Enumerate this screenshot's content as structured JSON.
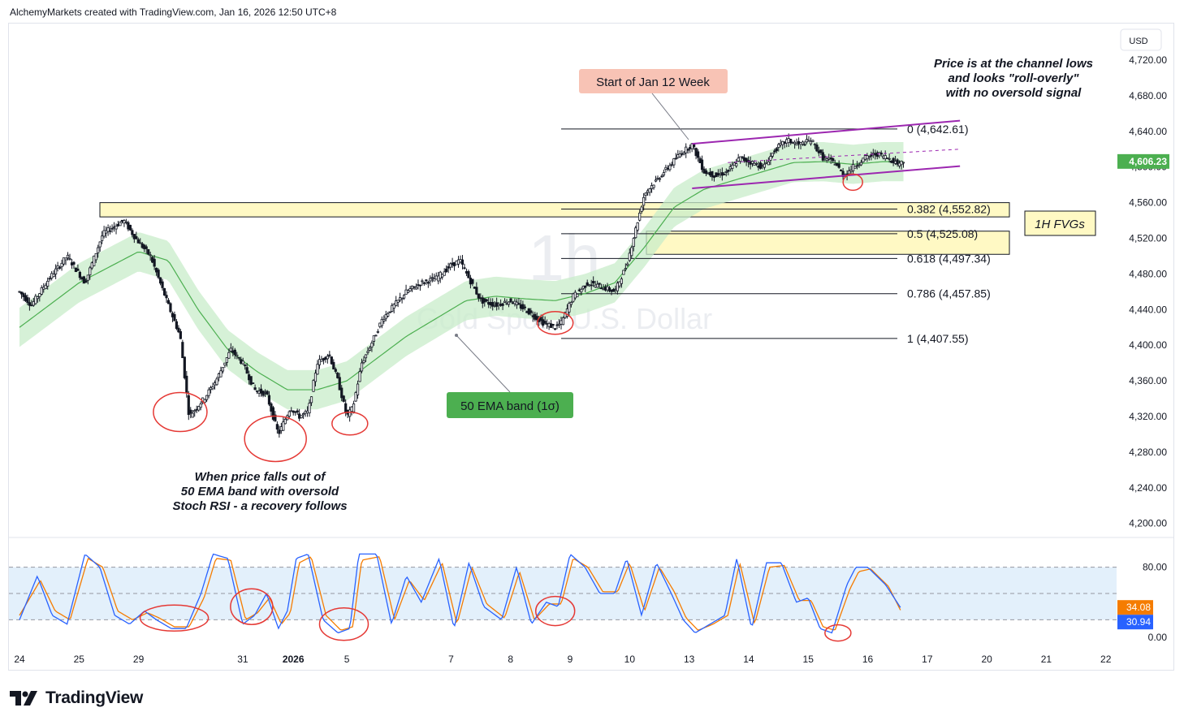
{
  "header": {
    "text": "AlchemyMarkets created with TradingView.com, Jan 16, 2026 12:50 UTC+8"
  },
  "footer": {
    "brand": "TradingView",
    "logo_icon": "tradingview-logo-icon"
  },
  "watermark": {
    "timeframe": "1h",
    "symbol_desc": "Gold Spot / U.S. Dollar"
  },
  "currency_button": "USD",
  "colors": {
    "candle": "#131722",
    "ema": "#4caf50",
    "band": "#c8ecc9",
    "channel": "#9c27b0",
    "circle": "#e53935",
    "stoch_k": "#2962ff",
    "stoch_d": "#f57c00",
    "stoch_band": "#e3f0fb",
    "fvg": "#fff9c4",
    "price_badge": "#4caf50",
    "k_badge": "#2962ff",
    "d_badge": "#f57c00"
  },
  "chart_data": [
    {
      "type": "line",
      "title": "Gold Spot / U.S. Dollar",
      "timeframe": "1h",
      "y_ticks": [
        "4,720.00",
        "4,680.00",
        "4,640.00",
        "4,599.99",
        "4,560.00",
        "4,520.00",
        "4,480.00",
        "4,440.00",
        "4,400.00",
        "4,360.00",
        "4,320.00",
        "4,280.00",
        "4,240.00",
        "4,200.00"
      ],
      "ylim": [
        4185,
        4740
      ],
      "x_ticks": [
        "24",
        "25",
        "29",
        "31",
        "2026",
        "5",
        "7",
        "8",
        "9",
        "10",
        "13",
        "14",
        "15",
        "16",
        "17",
        "20",
        "21",
        "22"
      ],
      "x_tick_index": [
        0,
        1,
        2,
        3.75,
        4.6,
        5.5,
        7.25,
        8.25,
        9.25,
        10.25,
        11.25,
        12.25,
        13.25,
        14.25,
        15.25,
        16.25,
        17.25,
        18.25
      ],
      "close_anchors": [
        [
          0,
          4460
        ],
        [
          0.2,
          4445
        ],
        [
          0.5,
          4475
        ],
        [
          0.8,
          4500
        ],
        [
          1.1,
          4470
        ],
        [
          1.4,
          4525
        ],
        [
          1.75,
          4540
        ],
        [
          1.95,
          4520
        ],
        [
          2.2,
          4500
        ],
        [
          2.5,
          4445
        ],
        [
          2.7,
          4410
        ],
        [
          2.85,
          4320
        ],
        [
          3.1,
          4340
        ],
        [
          3.3,
          4360
        ],
        [
          3.55,
          4395
        ],
        [
          3.75,
          4380
        ],
        [
          3.95,
          4350
        ],
        [
          4.15,
          4345
        ],
        [
          4.35,
          4300
        ],
        [
          4.55,
          4330
        ],
        [
          4.7,
          4320
        ],
        [
          4.85,
          4325
        ],
        [
          5.0,
          4380
        ],
        [
          5.2,
          4390
        ],
        [
          5.35,
          4360
        ],
        [
          5.5,
          4320
        ],
        [
          5.6,
          4330
        ],
        [
          5.75,
          4380
        ],
        [
          5.9,
          4400
        ],
        [
          6.1,
          4430
        ],
        [
          6.3,
          4445
        ],
        [
          6.5,
          4460
        ],
        [
          6.75,
          4470
        ],
        [
          7.0,
          4475
        ],
        [
          7.25,
          4490
        ],
        [
          7.4,
          4495
        ],
        [
          7.55,
          4475
        ],
        [
          7.75,
          4450
        ],
        [
          8.0,
          4445
        ],
        [
          8.25,
          4450
        ],
        [
          8.5,
          4440
        ],
        [
          8.8,
          4425
        ],
        [
          9.0,
          4420
        ],
        [
          9.1,
          4425
        ],
        [
          9.3,
          4455
        ],
        [
          9.55,
          4470
        ],
        [
          9.8,
          4465
        ],
        [
          10.0,
          4460
        ],
        [
          10.2,
          4490
        ],
        [
          10.35,
          4530
        ],
        [
          10.5,
          4570
        ],
        [
          10.7,
          4585
        ],
        [
          10.9,
          4600
        ],
        [
          11.1,
          4615
        ],
        [
          11.3,
          4625
        ],
        [
          11.5,
          4595
        ],
        [
          11.7,
          4590
        ],
        [
          11.9,
          4595
        ],
        [
          12.1,
          4610
        ],
        [
          12.3,
          4605
        ],
        [
          12.5,
          4600
        ],
        [
          12.7,
          4620
        ],
        [
          12.9,
          4630
        ],
        [
          13.1,
          4625
        ],
        [
          13.3,
          4630
        ],
        [
          13.5,
          4610
        ],
        [
          13.7,
          4605
        ],
        [
          13.85,
          4590
        ],
        [
          14.0,
          4600
        ],
        [
          14.2,
          4610
        ],
        [
          14.4,
          4615
        ],
        [
          14.6,
          4610
        ],
        [
          14.75,
          4604
        ],
        [
          14.85,
          4606
        ]
      ],
      "ema_anchors": [
        [
          0,
          4420
        ],
        [
          1,
          4470
        ],
        [
          2,
          4505
        ],
        [
          2.5,
          4495
        ],
        [
          3,
          4440
        ],
        [
          3.5,
          4395
        ],
        [
          4,
          4370
        ],
        [
          4.5,
          4350
        ],
        [
          5,
          4350
        ],
        [
          5.5,
          4360
        ],
        [
          6,
          4385
        ],
        [
          6.5,
          4410
        ],
        [
          7,
          4430
        ],
        [
          7.5,
          4450
        ],
        [
          8,
          4455
        ],
        [
          8.5,
          4452
        ],
        [
          9,
          4450
        ],
        [
          9.5,
          4458
        ],
        [
          10,
          4470
        ],
        [
          10.5,
          4510
        ],
        [
          11,
          4555
        ],
        [
          11.5,
          4575
        ],
        [
          12,
          4585
        ],
        [
          12.5,
          4595
        ],
        [
          13,
          4605
        ],
        [
          13.5,
          4606
        ],
        [
          14,
          4603
        ],
        [
          14.5,
          4606
        ],
        [
          14.85,
          4606
        ]
      ],
      "band_sigma": 22,
      "fib": {
        "levels": [
          "0 (4,642.61)",
          "0.382 (4,552.82)",
          "0.5 (4,525.08)",
          "0.618 (4,497.34)",
          "0.786 (4,457.85)",
          "1 (4,407.55)"
        ],
        "values": [
          4642.61,
          4552.82,
          4525.08,
          4497.34,
          4457.85,
          4407.55
        ],
        "start_index": 9.1,
        "end_index": 15.1
      },
      "fvg_zones": [
        [
          4544,
          4560
        ],
        [
          4502,
          4528
        ]
      ],
      "channel": {
        "upper": [
          [
            11.3,
            4626
          ],
          [
            15.8,
            4652
          ]
        ],
        "lower": [
          [
            11.3,
            4576
          ],
          [
            15.8,
            4601
          ]
        ],
        "mid": [
          [
            11.9,
            4605
          ],
          [
            15.8,
            4620
          ]
        ]
      },
      "current_price": "4,606.23",
      "annotations": {
        "week_start": "Start of Jan 12 Week",
        "channel_note": [
          "Price is at the channel lows",
          "and looks \"roll-overly\"",
          "with no oversold signal"
        ],
        "fvg_label": "1H FVGs",
        "ema_band_label": "50 EMA band (1σ)",
        "recovery_note": [
          "When price falls out of",
          "50 EMA band with oversold",
          "Stoch RSI - a recovery follows"
        ]
      },
      "circles": [
        [
          2.7,
          4325
        ],
        [
          4.3,
          4295
        ],
        [
          5.55,
          4312
        ],
        [
          9.0,
          4425
        ],
        [
          14.0,
          4583
        ]
      ]
    },
    {
      "type": "line",
      "title": "Stoch RSI",
      "ylim": [
        -5,
        110
      ],
      "y_ticks": [
        "80.00",
        "0.00"
      ],
      "band": [
        20,
        80
      ],
      "last_k": "34.08",
      "last_d": "30.94",
      "k_anchors": [
        [
          0,
          20
        ],
        [
          0.3,
          70
        ],
        [
          0.55,
          25
        ],
        [
          0.8,
          15
        ],
        [
          1.1,
          95
        ],
        [
          1.35,
          80
        ],
        [
          1.6,
          25
        ],
        [
          1.85,
          15
        ],
        [
          2.1,
          30
        ],
        [
          2.3,
          20
        ],
        [
          2.55,
          10
        ],
        [
          2.8,
          10
        ],
        [
          3.05,
          50
        ],
        [
          3.25,
          95
        ],
        [
          3.5,
          90
        ],
        [
          3.75,
          15
        ],
        [
          3.95,
          25
        ],
        [
          4.15,
          50
        ],
        [
          4.35,
          10
        ],
        [
          4.5,
          30
        ],
        [
          4.65,
          90
        ],
        [
          4.85,
          95
        ],
        [
          5.1,
          20
        ],
        [
          5.35,
          5
        ],
        [
          5.55,
          10
        ],
        [
          5.7,
          95
        ],
        [
          6.0,
          95
        ],
        [
          6.25,
          15
        ],
        [
          6.5,
          70
        ],
        [
          6.75,
          40
        ],
        [
          7.05,
          90
        ],
        [
          7.3,
          10
        ],
        [
          7.55,
          85
        ],
        [
          7.8,
          35
        ],
        [
          8.1,
          20
        ],
        [
          8.35,
          80
        ],
        [
          8.6,
          15
        ],
        [
          8.85,
          40
        ],
        [
          9.05,
          35
        ],
        [
          9.25,
          95
        ],
        [
          9.5,
          80
        ],
        [
          9.75,
          50
        ],
        [
          10.0,
          50
        ],
        [
          10.2,
          90
        ],
        [
          10.45,
          25
        ],
        [
          10.7,
          85
        ],
        [
          10.95,
          50
        ],
        [
          11.15,
          20
        ],
        [
          11.35,
          5
        ],
        [
          11.6,
          15
        ],
        [
          11.85,
          25
        ],
        [
          12.05,
          90
        ],
        [
          12.3,
          10
        ],
        [
          12.55,
          85
        ],
        [
          12.8,
          85
        ],
        [
          13.05,
          40
        ],
        [
          13.25,
          45
        ],
        [
          13.45,
          10
        ],
        [
          13.65,
          5
        ],
        [
          13.9,
          60
        ],
        [
          14.05,
          80
        ],
        [
          14.25,
          80
        ],
        [
          14.55,
          60
        ],
        [
          14.8,
          34
        ]
      ],
      "d_anchors": [
        [
          0,
          25
        ],
        [
          0.35,
          65
        ],
        [
          0.6,
          30
        ],
        [
          0.85,
          20
        ],
        [
          1.15,
          90
        ],
        [
          1.4,
          80
        ],
        [
          1.65,
          30
        ],
        [
          1.9,
          20
        ],
        [
          2.15,
          28
        ],
        [
          2.35,
          22
        ],
        [
          2.6,
          12
        ],
        [
          2.85,
          12
        ],
        [
          3.1,
          45
        ],
        [
          3.3,
          90
        ],
        [
          3.55,
          88
        ],
        [
          3.8,
          20
        ],
        [
          4.0,
          28
        ],
        [
          4.2,
          45
        ],
        [
          4.4,
          15
        ],
        [
          4.55,
          28
        ],
        [
          4.7,
          85
        ],
        [
          4.9,
          92
        ],
        [
          5.15,
          25
        ],
        [
          5.4,
          8
        ],
        [
          5.6,
          12
        ],
        [
          5.75,
          88
        ],
        [
          6.05,
          92
        ],
        [
          6.3,
          20
        ],
        [
          6.55,
          65
        ],
        [
          6.8,
          42
        ],
        [
          7.1,
          85
        ],
        [
          7.35,
          15
        ],
        [
          7.6,
          80
        ],
        [
          7.85,
          38
        ],
        [
          8.15,
          22
        ],
        [
          8.4,
          75
        ],
        [
          8.65,
          20
        ],
        [
          8.9,
          38
        ],
        [
          9.1,
          38
        ],
        [
          9.3,
          90
        ],
        [
          9.55,
          80
        ],
        [
          9.8,
          52
        ],
        [
          10.05,
          52
        ],
        [
          10.25,
          85
        ],
        [
          10.5,
          30
        ],
        [
          10.75,
          80
        ],
        [
          11.0,
          52
        ],
        [
          11.2,
          22
        ],
        [
          11.4,
          8
        ],
        [
          11.65,
          15
        ],
        [
          11.9,
          25
        ],
        [
          12.1,
          85
        ],
        [
          12.35,
          15
        ],
        [
          12.6,
          80
        ],
        [
          12.85,
          82
        ],
        [
          13.1,
          42
        ],
        [
          13.3,
          42
        ],
        [
          13.5,
          12
        ],
        [
          13.7,
          8
        ],
        [
          13.95,
          55
        ],
        [
          14.1,
          75
        ],
        [
          14.3,
          78
        ],
        [
          14.6,
          58
        ],
        [
          14.8,
          31
        ]
      ],
      "circles": [
        [
          2.6,
          22
        ],
        [
          3.9,
          35
        ],
        [
          5.45,
          15
        ],
        [
          9.0,
          30
        ],
        [
          13.75,
          5
        ]
      ]
    }
  ]
}
